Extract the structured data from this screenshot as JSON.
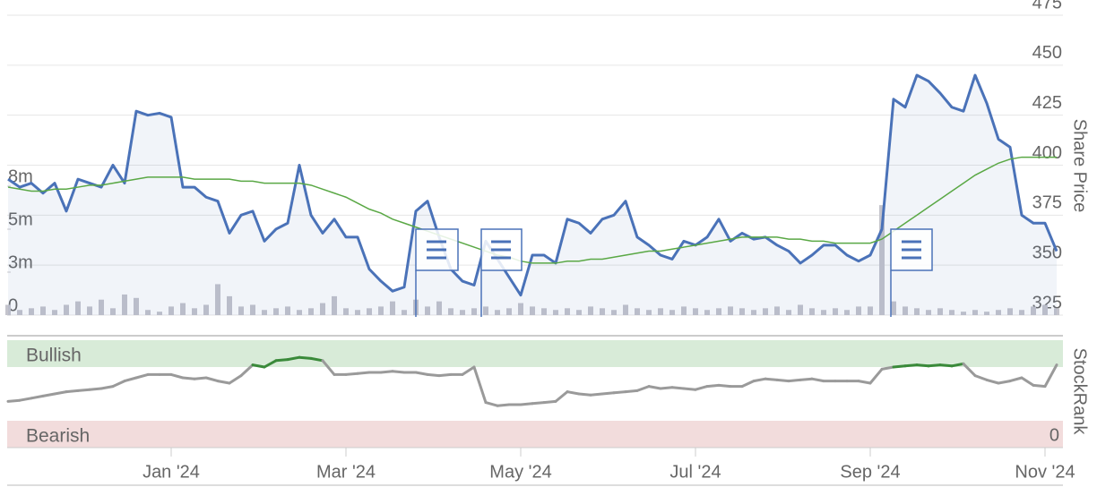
{
  "chart_data": [
    {
      "type": "line",
      "y_label": "Share Price",
      "categories": [
        null,
        null,
        null,
        null,
        null,
        null,
        null,
        null,
        null,
        null,
        null,
        null,
        null,
        null,
        "Jan '24",
        null,
        null,
        null,
        null,
        null,
        null,
        null,
        null,
        null,
        null,
        null,
        null,
        null,
        null,
        "Mar '24",
        null,
        null,
        null,
        null,
        null,
        null,
        null,
        null,
        null,
        null,
        null,
        null,
        null,
        null,
        "May '24",
        null,
        null,
        null,
        null,
        null,
        null,
        null,
        null,
        null,
        null,
        null,
        null,
        null,
        null,
        "Jul '24",
        null,
        null,
        null,
        null,
        null,
        null,
        null,
        null,
        null,
        null,
        null,
        null,
        null,
        null,
        "Sep '24",
        null,
        null,
        null,
        null,
        null,
        null,
        null,
        null,
        null,
        null,
        null,
        null,
        null,
        null,
        "Nov '24",
        null
      ],
      "ylim": [
        325,
        475
      ],
      "yticks": [
        325,
        350,
        375,
        400,
        425,
        450,
        475
      ],
      "y2lim": [
        0,
        17.45
      ],
      "y2ticks": [
        0,
        {
          "value": 2.5,
          "label": "3m"
        },
        {
          "value": 5,
          "label": "5m"
        },
        {
          "value": 7.5,
          "label": "8m"
        }
      ],
      "grid": true,
      "series": [
        {
          "kind": "bar",
          "axis": "y2",
          "color": "#c4c4cc",
          "values": [
            0.6,
            0.3,
            0.4,
            0.5,
            0.3,
            0.6,
            0.8,
            0.5,
            0.9,
            0.4,
            1.2,
            1.0,
            0.3,
            0.2,
            0.5,
            0.7,
            0.4,
            0.6,
            1.8,
            1.1,
            0.5,
            0.6,
            0.3,
            0.4,
            0.5,
            0.3,
            0.4,
            0.7,
            1.1,
            0.4,
            0.3,
            0.4,
            0.5,
            0.8,
            0.3,
            0.9,
            0.5,
            0.8,
            0.4,
            0.3,
            0.4,
            0.5,
            0.3,
            0.4,
            0.7,
            0.5,
            0.4,
            0.3,
            0.4,
            0.3,
            0.5,
            0.4,
            0.3,
            0.6,
            0.4,
            0.3,
            0.4,
            0.3,
            0.5,
            0.4,
            0.3,
            0.4,
            0.5,
            0.4,
            0.3,
            0.4,
            0.5,
            0.3,
            0.6,
            0.4,
            0.3,
            0.4,
            0.3,
            0.5,
            0.5,
            6.4,
            0.8,
            0.5,
            0.4,
            0.3,
            0.4,
            0.3,
            0.2,
            0.3,
            0.2,
            0.3,
            0.4,
            0.3,
            0.5,
            0.6,
            0.4
          ]
        },
        {
          "kind": "area",
          "color": "#4a72b8",
          "values": [
            393,
            389,
            391,
            386,
            391,
            377,
            393,
            391,
            389,
            400,
            391,
            427,
            425,
            426,
            424,
            389,
            389,
            384,
            382,
            366,
            375,
            377,
            362,
            368,
            371,
            400,
            375,
            366,
            373,
            364,
            364,
            348,
            342,
            337,
            339,
            377,
            382,
            364,
            348,
            342,
            340,
            362,
            353,
            344,
            335,
            355,
            355,
            351,
            373,
            371,
            366,
            373,
            375,
            382,
            364,
            360,
            355,
            353,
            362,
            360,
            364,
            373,
            362,
            366,
            363,
            364,
            360,
            357,
            351,
            355,
            360,
            360,
            355,
            352,
            355,
            368,
            433,
            429,
            445,
            442,
            436,
            429,
            427,
            445,
            431,
            413,
            409,
            375,
            371,
            371,
            357
          ]
        },
        {
          "kind": "line",
          "color": "#5aa845",
          "values": [
            389,
            388,
            387,
            387,
            388,
            388,
            389,
            390,
            390,
            391,
            392,
            393,
            394,
            394,
            394,
            394,
            393,
            393,
            393,
            393,
            392,
            392,
            391,
            391,
            391,
            391,
            390,
            388,
            386,
            384,
            381,
            378,
            376,
            373,
            371,
            369,
            367,
            365,
            363,
            361,
            359,
            357,
            355,
            354,
            352,
            351,
            351,
            351,
            352,
            352,
            353,
            353,
            354,
            355,
            356,
            357,
            357,
            358,
            359,
            360,
            361,
            362,
            363,
            364,
            364,
            364,
            364,
            363,
            363,
            362,
            362,
            361,
            361,
            361,
            361,
            363,
            367,
            371,
            375,
            379,
            383,
            387,
            391,
            395,
            398,
            401,
            403,
            404,
            404,
            404,
            404
          ]
        }
      ]
    },
    {
      "type": "line",
      "y_label": "StockRank",
      "ylim": [
        0,
        100
      ],
      "yticks": [
        0
      ],
      "bands": [
        {
          "label": "Bullish",
          "color": "#3a8a3a"
        },
        {
          "label": "Bearish",
          "color": "#c0394a"
        }
      ],
      "series": [
        {
          "kind": "line",
          "color": "#9a9a9a",
          "highlight": "#3a8a3a",
          "values": [
            43,
            44,
            46,
            48,
            50,
            52,
            53,
            54,
            55,
            57,
            62,
            65,
            68,
            68,
            68,
            65,
            64,
            65,
            62,
            60,
            67,
            77,
            75,
            81,
            82,
            84,
            83,
            81,
            68,
            68,
            69,
            70,
            70,
            71,
            70,
            70,
            68,
            67,
            68,
            68,
            75,
            42,
            39,
            40,
            40,
            41,
            42,
            43,
            52,
            50,
            49,
            50,
            51,
            52,
            53,
            57,
            55,
            56,
            55,
            54,
            57,
            58,
            57,
            57,
            62,
            64,
            63,
            62,
            63,
            64,
            62,
            62,
            62,
            62,
            60,
            73,
            75,
            76,
            77,
            76,
            77,
            76,
            78,
            67,
            63,
            60,
            62,
            65,
            58,
            57,
            77
          ]
        }
      ]
    }
  ]
}
